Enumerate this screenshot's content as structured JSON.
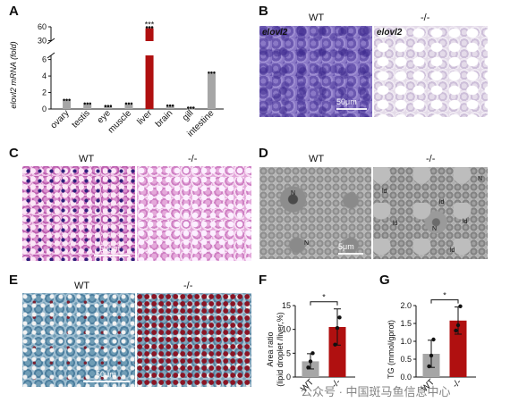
{
  "panels": {
    "A": {
      "letter": "A",
      "ylabel": "elovl2 mRNA (fold)",
      "significance": "***",
      "ticks": [
        "0",
        "2",
        "4",
        "6",
        "30",
        "60"
      ]
    },
    "B": {
      "letter": "B",
      "wt": "WT",
      "ko": "-/-",
      "stain_left": "elovl2",
      "stain_right": "elovl2",
      "scale": "50μm"
    },
    "C": {
      "letter": "C",
      "wt": "WT",
      "ko": "-/-",
      "scale": "50μm"
    },
    "D": {
      "letter": "D",
      "wt": "WT",
      "ko": "-/-",
      "scale": "5μm",
      "labels": [
        "N",
        "N",
        "ld",
        "ld",
        "ld",
        "N",
        "N",
        "ld",
        "ld"
      ]
    },
    "E": {
      "letter": "E",
      "wt": "WT",
      "ko": "-/-",
      "scale": "50μm"
    },
    "F": {
      "letter": "F",
      "ylabel_line1": "Area ratio",
      "ylabel_line2": "(lipid droplet /liver,%)",
      "ticks": [
        "0",
        "5",
        "10",
        "15"
      ],
      "significance": "*"
    },
    "G": {
      "letter": "G",
      "ylabel": "TG (mmol/gprot)",
      "ticks": [
        "0.0",
        "0.5",
        "1.0",
        "1.5",
        "2.0"
      ],
      "significance": "*"
    }
  },
  "chart_data": [
    {
      "type": "bar",
      "panel": "A",
      "ylabel": "elovl2 mRNA (fold)",
      "categories": [
        "ovary",
        "testis",
        "eye",
        "muscle",
        "liver",
        "brain",
        "gill",
        "intestine"
      ],
      "values": [
        1.0,
        0.55,
        0.25,
        0.55,
        57,
        0.3,
        0.05,
        4.3
      ],
      "colors": [
        "#a6a6a6",
        "#a6a6a6",
        "#a6a6a6",
        "#a6a6a6",
        "#b01010",
        "#a6a6a6",
        "#a6a6a6",
        "#a6a6a6"
      ],
      "axis_break": [
        6.5,
        29
      ]
    },
    {
      "type": "bar",
      "panel": "F",
      "categories": [
        "WT",
        "-/-"
      ],
      "values": [
        3.3,
        10.5
      ],
      "errors": [
        1.6,
        3.8
      ],
      "points": [
        [
          2.0,
          3.3,
          5.0
        ],
        [
          6.8,
          10.3,
          12.5
        ]
      ],
      "colors": [
        "#a6a6a6",
        "#b01010"
      ],
      "ylim": [
        0,
        15
      ]
    },
    {
      "type": "bar",
      "panel": "G",
      "categories": [
        "WT",
        "-/-"
      ],
      "values": [
        0.65,
        1.58
      ],
      "errors": [
        0.38,
        0.38
      ],
      "points": [
        [
          0.3,
          0.6,
          1.05
        ],
        [
          1.3,
          1.45,
          1.98
        ]
      ],
      "colors": [
        "#a6a6a6",
        "#b01010"
      ],
      "ylim": [
        0,
        2.0
      ]
    }
  ],
  "watermark": "公众号 · 中国斑马鱼信息中心"
}
